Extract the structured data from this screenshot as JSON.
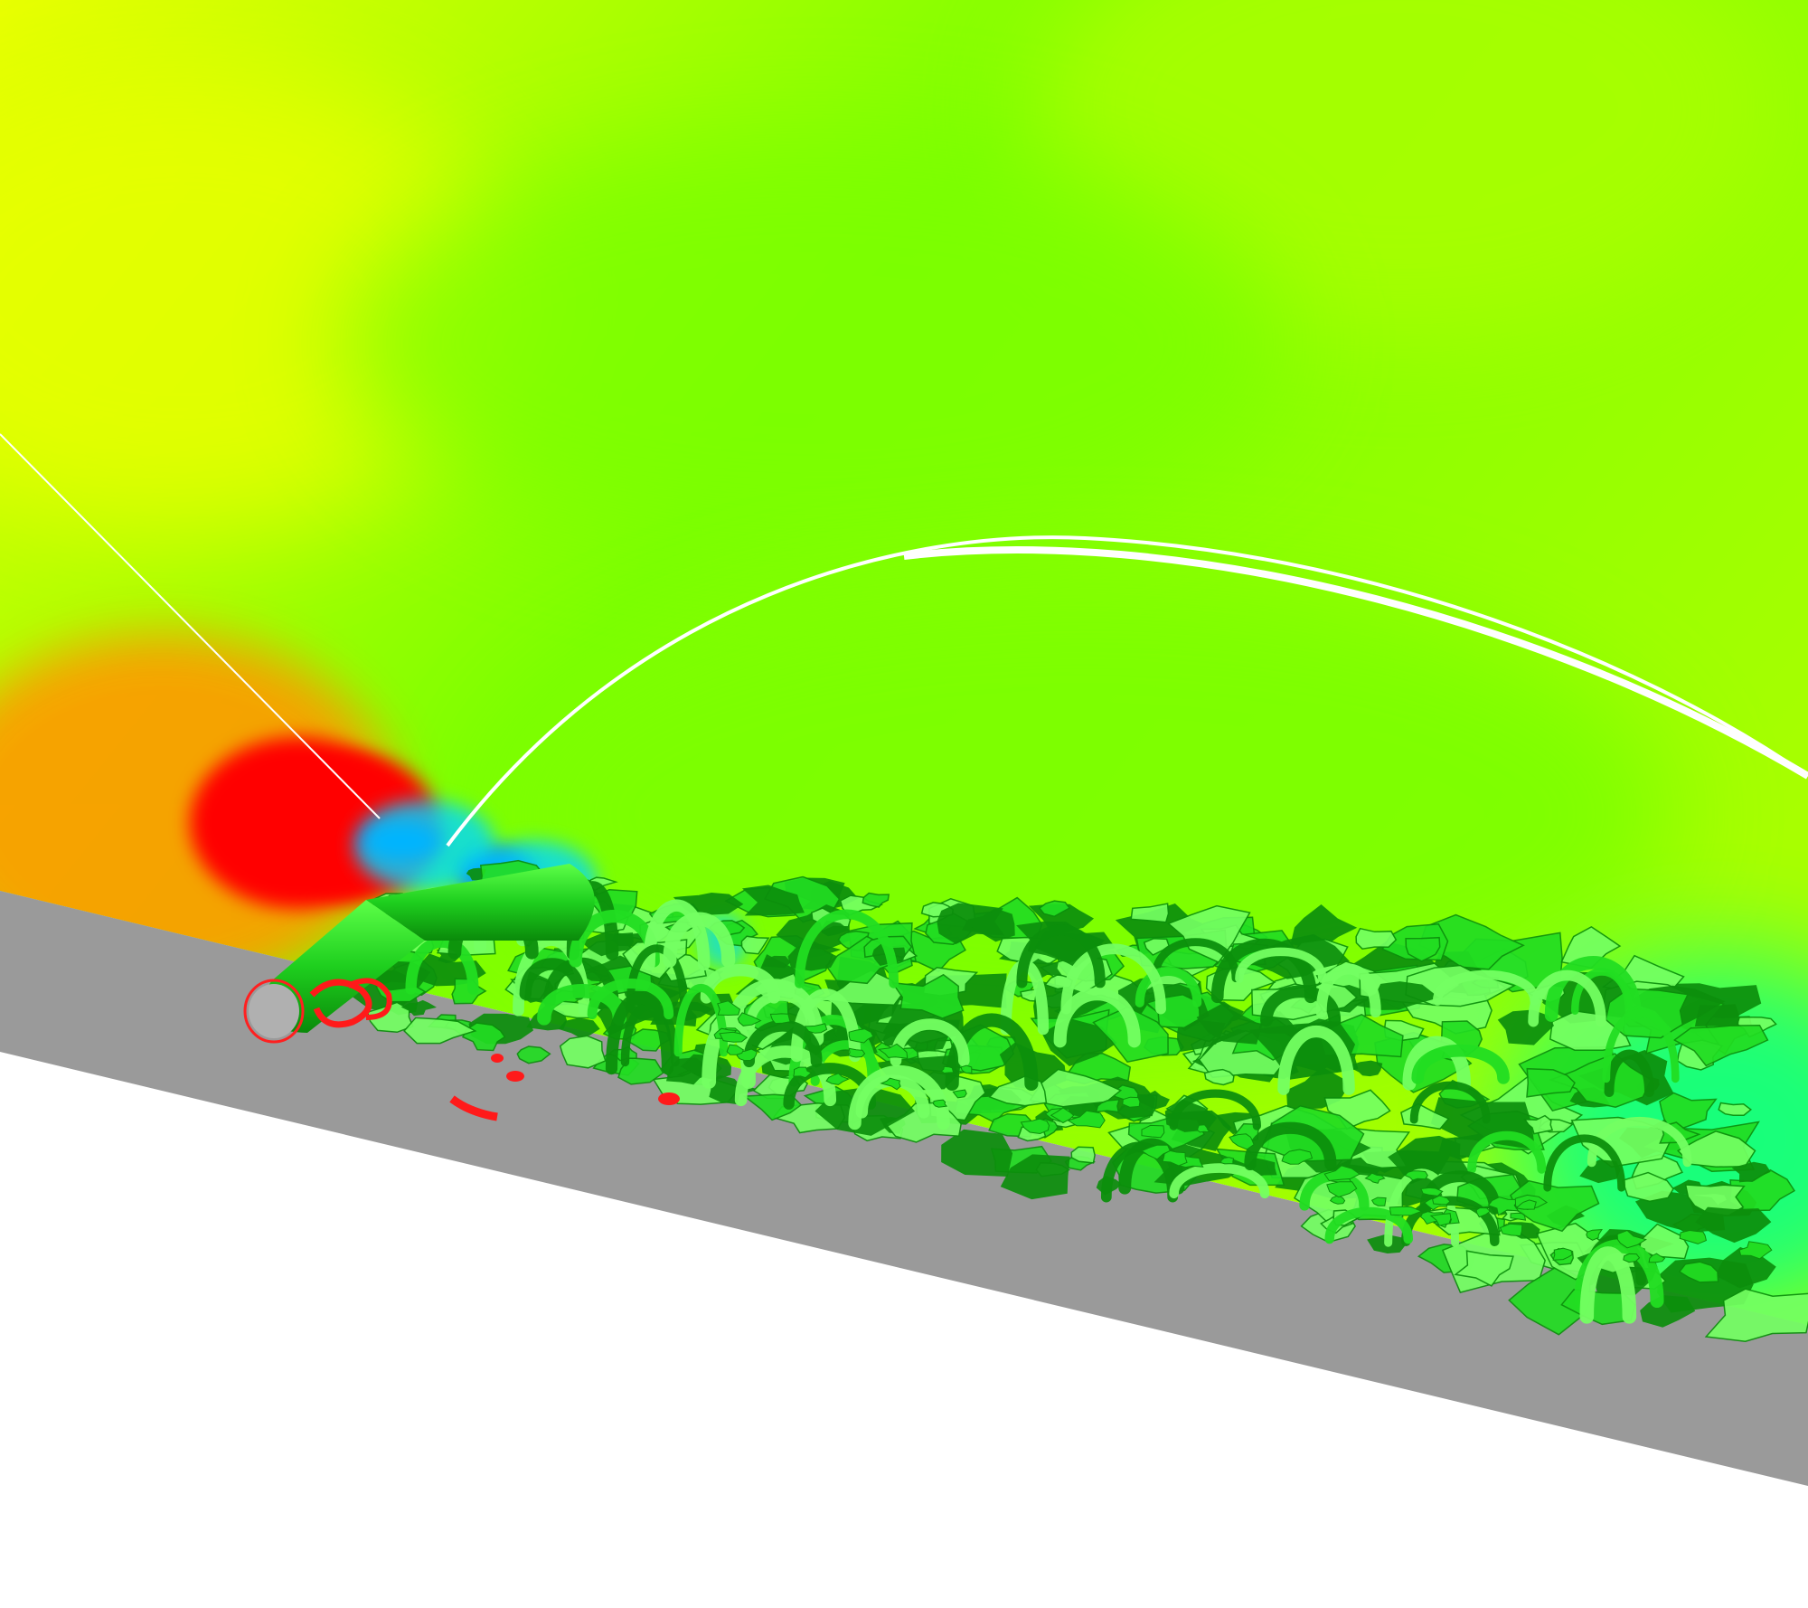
{
  "scene": {
    "colors": {
      "field_yellow": "#e8ff00",
      "field_lime": "#a8ff00",
      "field_green": "#7cff00",
      "field_teal": "#00ff90",
      "field_orange": "#ff9a00",
      "field_red": "#ff0000",
      "field_blue": "#0026ff",
      "field_cyan": "#00d8ff",
      "wall_gray": "#9a9a9a",
      "iso_green": "#22dd22",
      "iso_dark": "#0c8f0c",
      "iso_light": "#74ff62",
      "iso_red": "#ff1111",
      "cylinder_cap": "#b0b0b0",
      "shock_line": "#ffffff",
      "background": "#ffffff"
    },
    "icons": [
      "cylinder-icon",
      "vortex-structure-icon"
    ]
  }
}
